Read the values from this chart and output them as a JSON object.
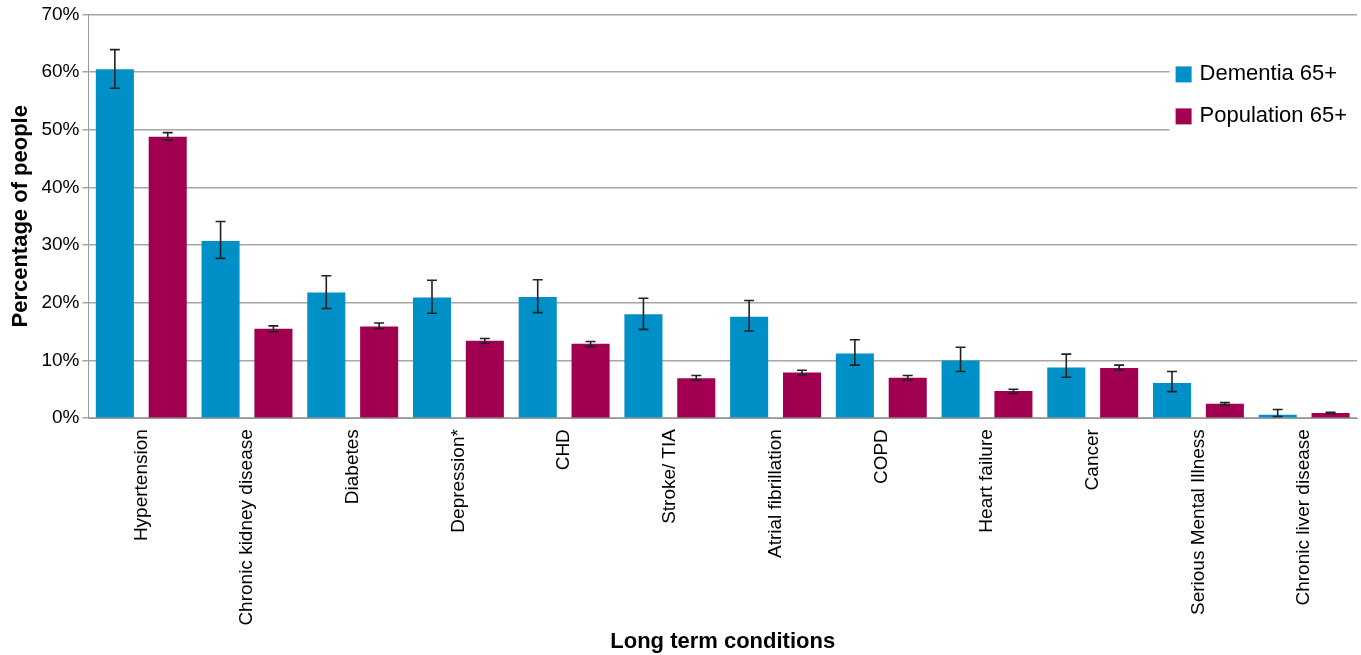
{
  "chart_data": {
    "type": "bar",
    "xlabel": "Long term conditions",
    "ylabel": "Percentage of people",
    "categories": [
      "Hypertension",
      "Chronic kidney disease",
      "Diabetes",
      "Depression*",
      "CHD",
      "Stroke/ TIA",
      "Atrial fibrillation",
      "COPD",
      "Heart failure",
      "Cancer",
      "Serious Mental Illness",
      "Chronic liver disease"
    ],
    "series": [
      {
        "name": "Dementia 65+",
        "color": "#0090c8",
        "values": [
          60.5,
          30.7,
          21.8,
          20.9,
          21.0,
          18.0,
          17.6,
          11.2,
          10.0,
          8.8,
          6.1,
          0.6
        ],
        "errors": [
          [
            57.2,
            63.9
          ],
          [
            27.7,
            34.1
          ],
          [
            19.0,
            24.7
          ],
          [
            18.2,
            23.9
          ],
          [
            18.3,
            24.0
          ],
          [
            15.4,
            20.8
          ],
          [
            15.1,
            20.4
          ],
          [
            9.2,
            13.6
          ],
          [
            8.1,
            12.3
          ],
          [
            7.1,
            11.1
          ],
          [
            4.6,
            8.1
          ],
          [
            0.3,
            1.5
          ]
        ]
      },
      {
        "name": "Population 65+",
        "color": "#a0004f",
        "values": [
          48.8,
          15.5,
          15.9,
          13.4,
          12.9,
          6.9,
          7.9,
          7.0,
          4.7,
          8.7,
          2.5,
          0.9
        ],
        "errors": [
          [
            48.2,
            49.5
          ],
          [
            15.0,
            16.0
          ],
          [
            15.5,
            16.5
          ],
          [
            13.0,
            13.8
          ],
          [
            12.4,
            13.3
          ],
          [
            6.6,
            7.4
          ],
          [
            7.5,
            8.3
          ],
          [
            6.6,
            7.4
          ],
          [
            4.3,
            5.0
          ],
          [
            8.3,
            9.2
          ],
          [
            2.2,
            2.7
          ],
          [
            0.8,
            1.0
          ]
        ]
      }
    ],
    "ylim": [
      0,
      70
    ],
    "yticks": [
      {
        "value": 0,
        "label": "0%"
      },
      {
        "value": 10,
        "label": "10%"
      },
      {
        "value": 20,
        "label": "20%"
      },
      {
        "value": 30,
        "label": "30%"
      },
      {
        "value": 40,
        "label": "40%"
      },
      {
        "value": 50,
        "label": "50%"
      },
      {
        "value": 60,
        "label": "60%"
      },
      {
        "value": 70,
        "label": "70%"
      }
    ],
    "grid": "y",
    "legend": "top right"
  }
}
